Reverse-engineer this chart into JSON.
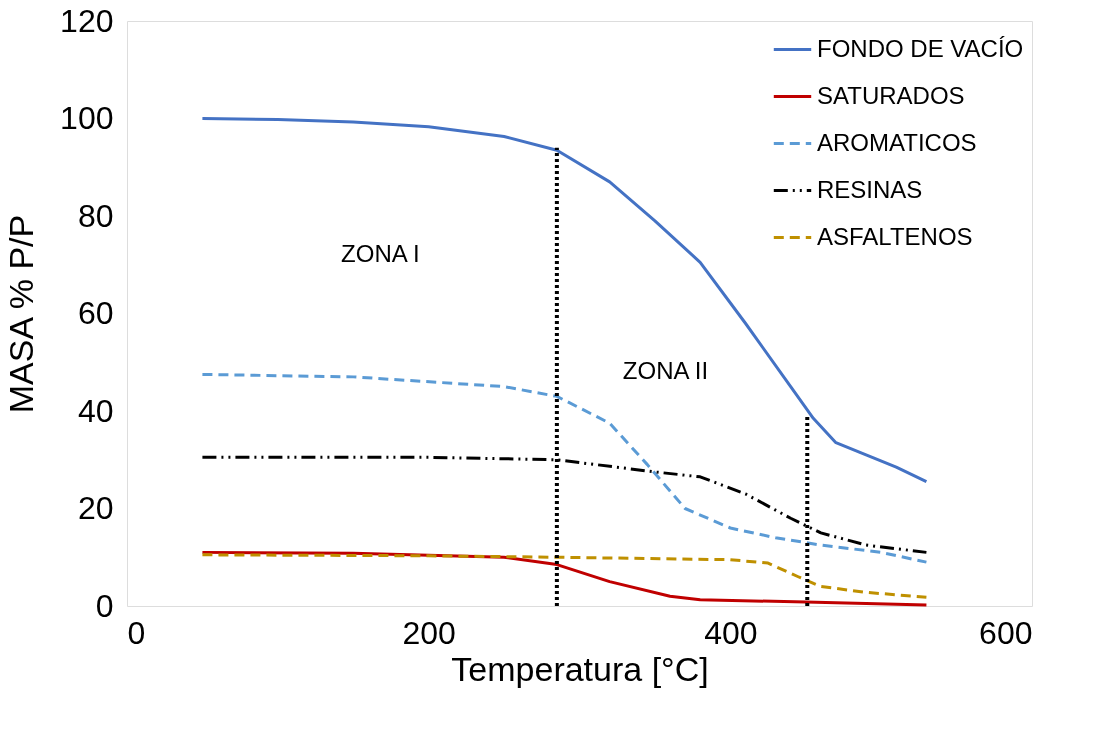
{
  "chart_data": {
    "type": "line",
    "xlabel": "Temperatura   [°C]",
    "ylabel": "MASA % P/P",
    "xlim": [
      0,
      600
    ],
    "xticks": [
      0,
      200,
      400,
      600
    ],
    "ylim": [
      0,
      120
    ],
    "yticks": [
      0,
      20,
      40,
      60,
      80,
      100,
      120
    ],
    "grid": false,
    "legend": "top right",
    "marker": "none",
    "annotations": [
      "ZONA I",
      "ZONA II"
    ],
    "series": [
      {
        "name": "FONDO DE VACÍO",
        "color": "#4472c4",
        "line_style": "solid",
        "x": [
          50,
          100,
          150,
          200,
          250,
          285,
          320,
          350,
          380,
          410,
          440,
          455,
          470,
          490,
          510,
          530
        ],
        "values": [
          100,
          99.8,
          99.3,
          98.3,
          96.3,
          93.5,
          87,
          79,
          70.5,
          58,
          45,
          38.5,
          33.5,
          31,
          28.5,
          25.5
        ]
      },
      {
        "name": "SATURADOS",
        "color": "#c00000",
        "line_style": "solid",
        "x": [
          50,
          150,
          250,
          285,
          320,
          360,
          380,
          450,
          530
        ],
        "values": [
          11,
          10.8,
          10,
          8.5,
          5,
          2,
          1.3,
          0.8,
          0.2
        ]
      },
      {
        "name": "AROMATICOS",
        "color": "#5b9bd5",
        "line_style": "dashed",
        "x": [
          50,
          150,
          250,
          285,
          320,
          345,
          370,
          400,
          430,
          460,
          500,
          530
        ],
        "values": [
          47.5,
          47,
          45,
          43,
          37.5,
          29,
          20,
          16,
          14,
          12.5,
          11,
          9
        ]
      },
      {
        "name": "RESINAS",
        "color": "#000000",
        "line_style": "dashdot",
        "x": [
          50,
          200,
          285,
          350,
          380,
          410,
          440,
          460,
          490,
          530
        ],
        "values": [
          30.5,
          30.5,
          30,
          27.5,
          26.5,
          23,
          18,
          15,
          12.5,
          11
        ]
      },
      {
        "name": "ASFALTENOS",
        "color": "#bf9000",
        "line_style": "dashed",
        "x": [
          50,
          200,
          285,
          400,
          425,
          445,
          460,
          490,
          530
        ],
        "values": [
          10.5,
          10.3,
          10,
          9.5,
          8.8,
          6,
          4,
          2.8,
          1.8
        ]
      },
      {
        "color": "#000000",
        "line_style": "dotted",
        "x": [
          285,
          285
        ],
        "values": [
          0,
          94
        ]
      },
      {
        "color": "#000000",
        "line_style": "dotted",
        "x": [
          451,
          451
        ],
        "values": [
          0,
          39
        ]
      }
    ]
  }
}
